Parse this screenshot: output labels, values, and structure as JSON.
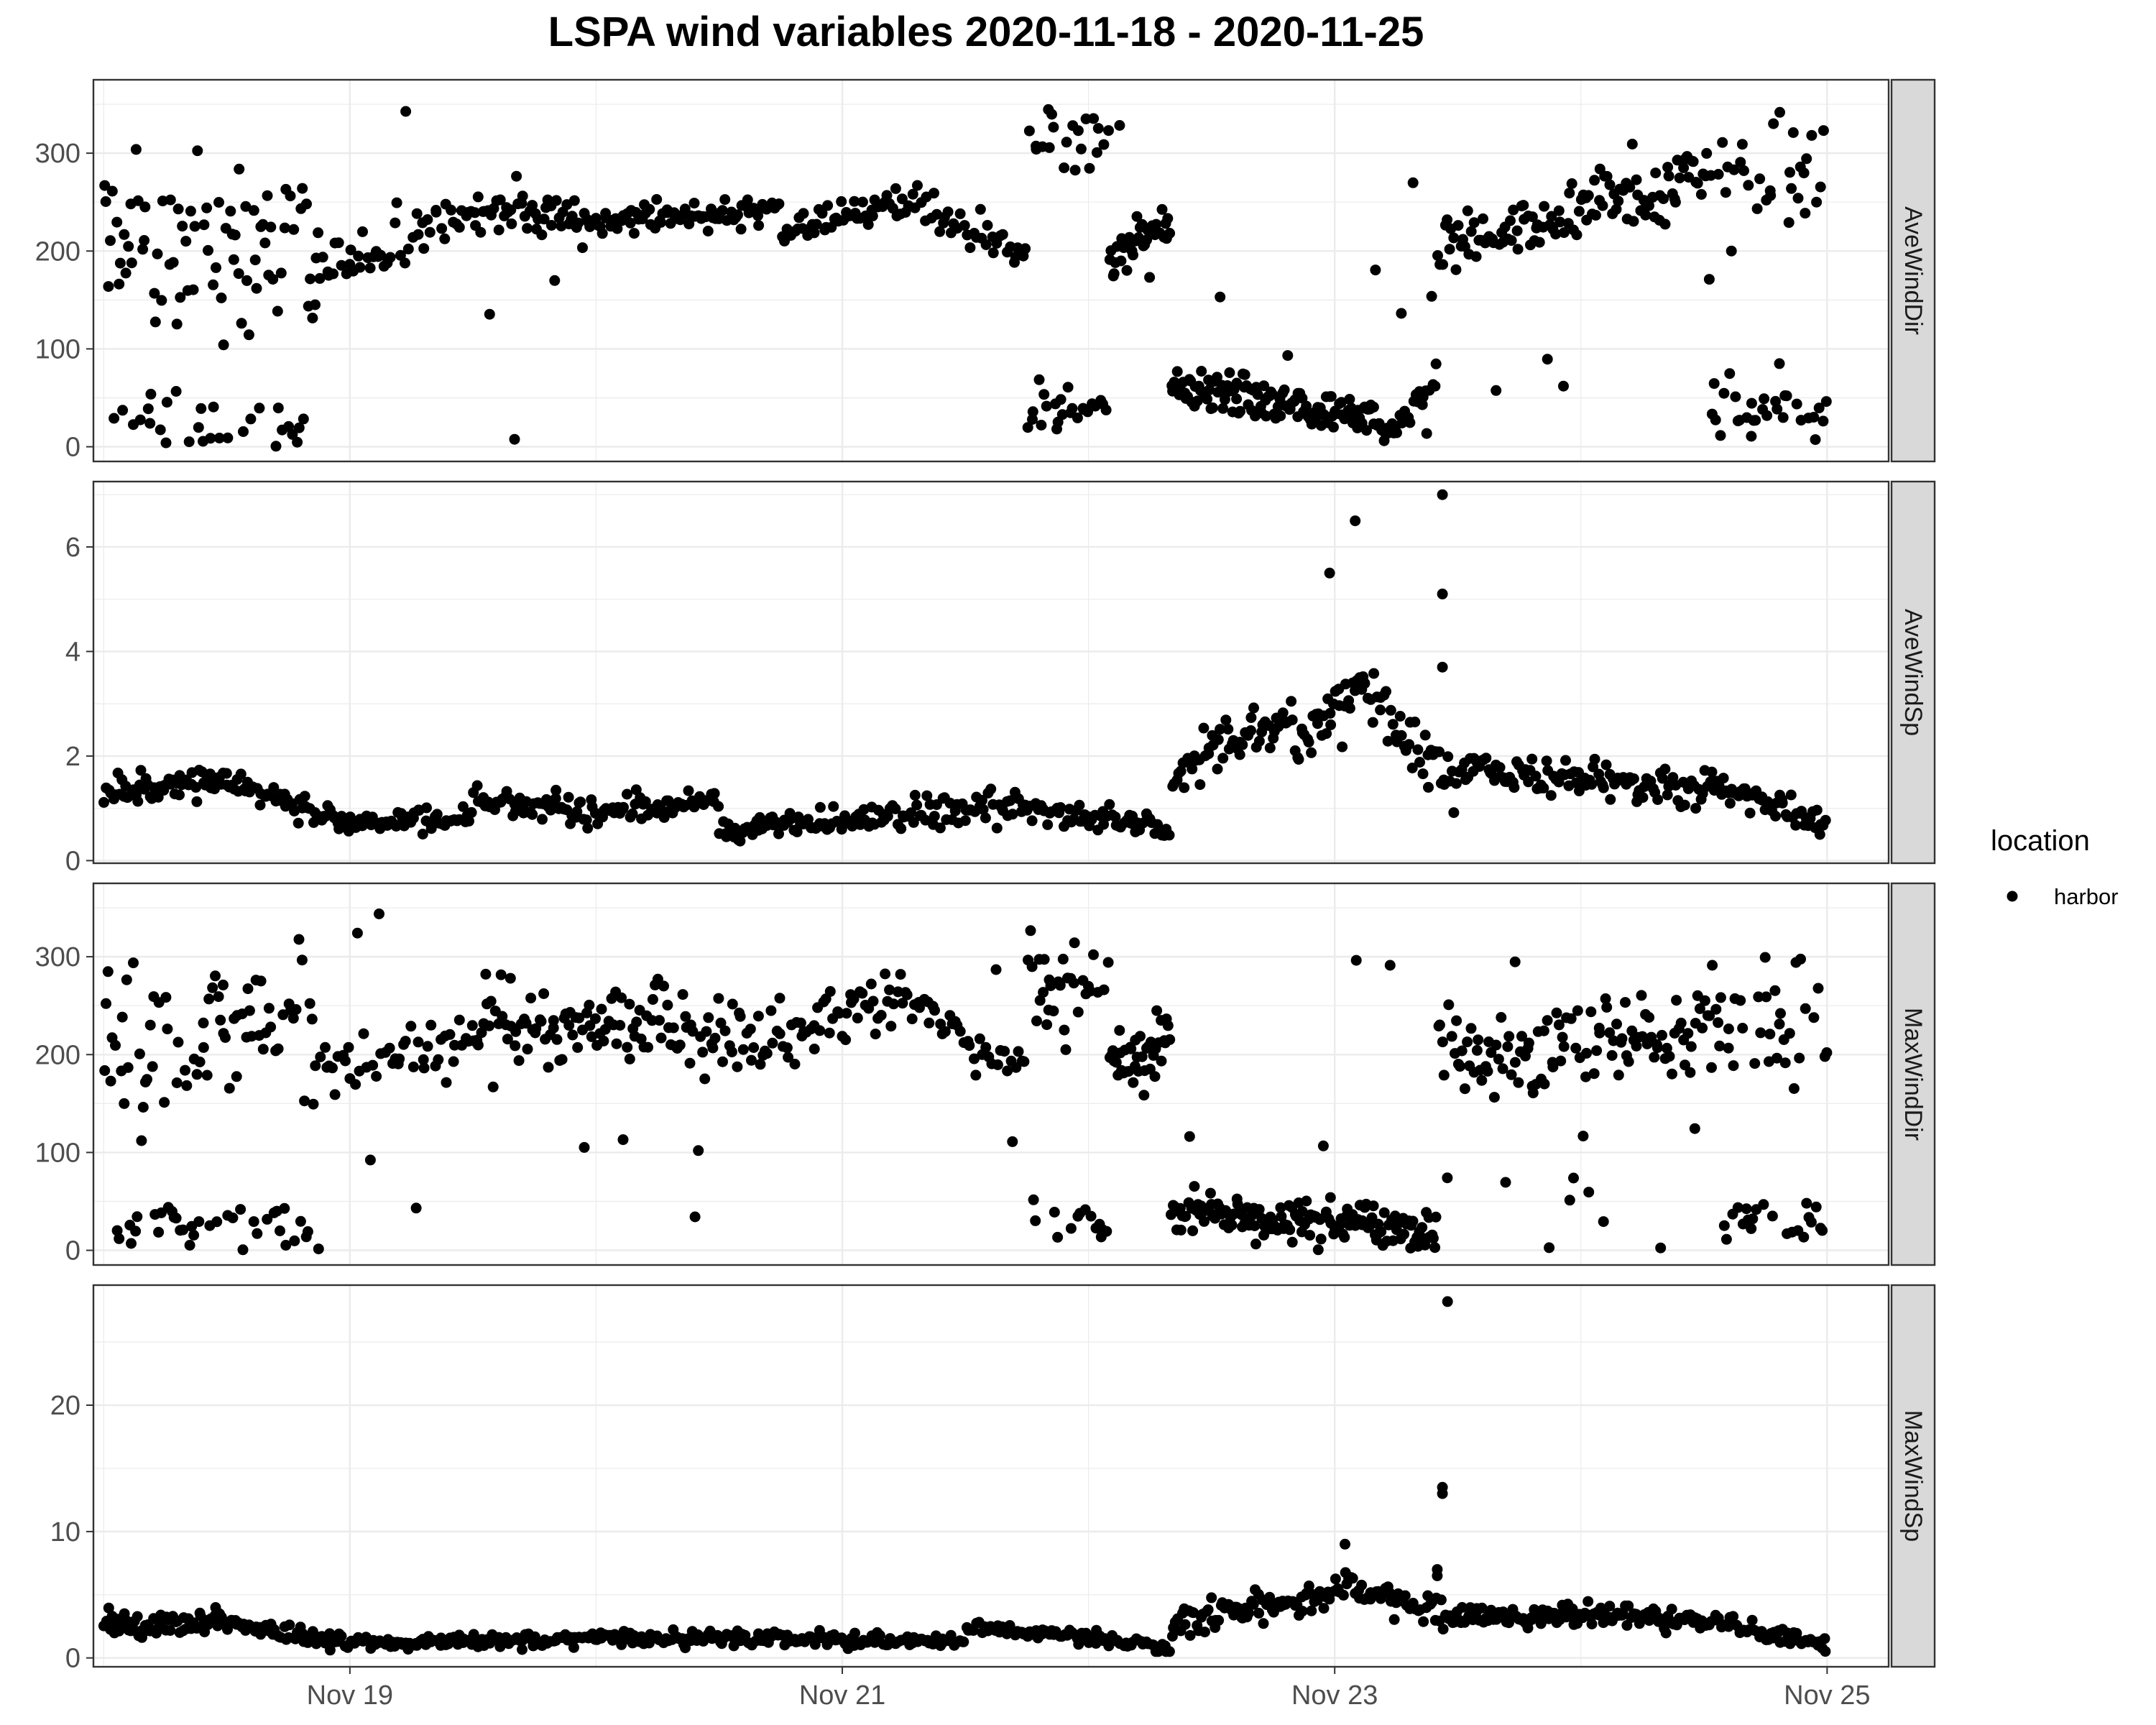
{
  "chart_data": {
    "type": "scatter",
    "title": "LSPA wind variables 2020-11-18 - 2020-11-25",
    "xlabel": "",
    "ylabel": "",
    "x_axis": {
      "range": [
        "2020-11-17T23:00",
        "2020-11-25T06:00"
      ],
      "ticks": [
        {
          "value": "2020-11-19",
          "label": "Nov 19"
        },
        {
          "value": "2020-11-21",
          "label": "Nov 21"
        },
        {
          "value": "2020-11-23",
          "label": "Nov 23"
        },
        {
          "value": "2020-11-25",
          "label": "Nov 25"
        }
      ]
    },
    "grid": true,
    "theme": "bw",
    "point_color": "#000000",
    "strip_fill": "#d9d9d9",
    "legend": {
      "title": "location",
      "placement": "right",
      "entries": [
        {
          "label": "harbor",
          "color": "#000000"
        }
      ]
    },
    "facets": [
      {
        "name": "AveWindDir",
        "ylim": [
          -15,
          375
        ],
        "yticks": [
          0,
          100,
          200,
          300
        ],
        "seed": 11,
        "segments": [
          {
            "from": "2020-11-18T00:00",
            "to": "2020-11-18T21:00",
            "n": 110,
            "mode": "mix",
            "levels": [
              [
                25,
                25,
                0.3
              ],
              [
                220,
                80,
                0.7
              ]
            ]
          },
          {
            "from": "2020-11-18T21:00",
            "to": "2020-11-19T12:00",
            "n": 50,
            "mode": "trend",
            "y0": 175,
            "y1": 235,
            "noise": 20,
            "outlier": 0.08
          },
          {
            "from": "2020-11-19T12:00",
            "to": "2020-11-20T00:00",
            "n": 55,
            "mode": "trend",
            "y0": 240,
            "y1": 232,
            "noise": 18,
            "outlier": 0.12
          },
          {
            "from": "2020-11-20T00:00",
            "to": "2020-11-20T18:00",
            "n": 75,
            "mode": "trend",
            "y0": 232,
            "y1": 242,
            "noise": 12,
            "outlier": 0.01
          },
          {
            "from": "2020-11-20T18:00",
            "to": "2020-11-21T06:00",
            "n": 50,
            "mode": "trend",
            "y0": 220,
            "y1": 250,
            "noise": 12,
            "outlier": 0.02
          },
          {
            "from": "2020-11-21T06:00",
            "to": "2020-11-21T18:00",
            "n": 40,
            "mode": "trend",
            "y0": 250,
            "y1": 200,
            "noise": 20,
            "outlier": 0.05
          },
          {
            "from": "2020-11-21T18:00",
            "to": "2020-11-22T02:00",
            "n": 45,
            "mode": "mix",
            "levels": [
              [
                40,
                20,
                0.5
              ],
              [
                300,
                40,
                0.5
              ]
            ]
          },
          {
            "from": "2020-11-22T02:00",
            "to": "2020-11-22T08:00",
            "n": 40,
            "mode": "trend",
            "y0": 190,
            "y1": 235,
            "noise": 20,
            "outlier": 0.04
          },
          {
            "from": "2020-11-22T08:00",
            "to": "2020-11-23T06:00",
            "n": 140,
            "mode": "trend",
            "y0": 65,
            "y1": 22,
            "noise": 18,
            "outlier": 0.04
          },
          {
            "from": "2020-11-23T06:00",
            "to": "2020-11-23T10:00",
            "n": 22,
            "mode": "trend",
            "y0": 25,
            "y1": 60,
            "noise": 15,
            "outlier": 0.05
          },
          {
            "from": "2020-11-23T10:00",
            "to": "2020-11-24T12:00",
            "n": 120,
            "mode": "trend",
            "y0": 200,
            "y1": 280,
            "noise": 25,
            "outlier": 0.05
          },
          {
            "from": "2020-11-24T12:00",
            "to": "2020-11-25T00:00",
            "n": 65,
            "mode": "mix",
            "levels": [
              [
                40,
                30,
                0.4
              ],
              [
                260,
                60,
                0.6
              ]
            ]
          }
        ]
      },
      {
        "name": "AveWindSp",
        "ylim": [
          -0.05,
          7.25
        ],
        "yticks": [
          0,
          2,
          4,
          6
        ],
        "seed": 23,
        "segments": [
          {
            "from": "2020-11-18T00:00",
            "to": "2020-11-18T12:00",
            "n": 60,
            "mode": "trend",
            "y0": 1.3,
            "y1": 1.6,
            "noise": 0.28,
            "outlier": 0
          },
          {
            "from": "2020-11-18T12:00",
            "to": "2020-11-19T00:00",
            "n": 55,
            "mode": "trend",
            "y0": 1.5,
            "y1": 0.7,
            "noise": 0.2,
            "outlier": 0
          },
          {
            "from": "2020-11-19T00:00",
            "to": "2020-11-19T12:00",
            "n": 50,
            "mode": "trend",
            "y0": 0.7,
            "y1": 0.8,
            "noise": 0.18,
            "outlier": 0
          },
          {
            "from": "2020-11-19T12:00",
            "to": "2020-11-20T00:00",
            "n": 55,
            "mode": "trend",
            "y0": 1.2,
            "y1": 0.9,
            "noise": 0.25,
            "outlier": 0
          },
          {
            "from": "2020-11-20T00:00",
            "to": "2020-11-20T12:00",
            "n": 50,
            "mode": "trend",
            "y0": 0.9,
            "y1": 1.2,
            "noise": 0.25,
            "outlier": 0
          },
          {
            "from": "2020-11-20T12:00",
            "to": "2020-11-21T00:00",
            "n": 55,
            "mode": "trend",
            "y0": 0.6,
            "y1": 0.8,
            "noise": 0.2,
            "outlier": 0
          },
          {
            "from": "2020-11-21T00:00",
            "to": "2020-11-21T18:00",
            "n": 75,
            "mode": "trend",
            "y0": 0.8,
            "y1": 1.1,
            "noise": 0.25,
            "outlier": 0
          },
          {
            "from": "2020-11-21T18:00",
            "to": "2020-11-22T08:00",
            "n": 60,
            "mode": "trend",
            "y0": 1.0,
            "y1": 0.6,
            "noise": 0.2,
            "outlier": 0
          },
          {
            "from": "2020-11-22T08:00",
            "to": "2020-11-22T20:00",
            "n": 55,
            "mode": "trend",
            "y0": 1.7,
            "y1": 2.8,
            "noise": 0.4,
            "outlier": 0
          },
          {
            "from": "2020-11-22T20:00",
            "to": "2020-11-23T02:00",
            "n": 30,
            "mode": "trend",
            "y0": 2.2,
            "y1": 3.2,
            "noise": 0.55,
            "outlier": 0
          },
          {
            "from": "2020-11-23T02:00",
            "to": "2020-11-23T12:00",
            "n": 45,
            "mode": "trend",
            "y0": 3.5,
            "y1": 1.3,
            "noise": 0.45,
            "outlier": 0
          },
          {
            "from": "2020-11-23T12:00",
            "to": "2020-11-24T12:00",
            "n": 110,
            "mode": "trend",
            "y0": 1.8,
            "y1": 1.3,
            "noise": 0.3,
            "outlier": 0
          },
          {
            "from": "2020-11-24T12:00",
            "to": "2020-11-25T00:00",
            "n": 55,
            "mode": "trend",
            "y0": 1.5,
            "y1": 0.7,
            "noise": 0.25,
            "outlier": 0
          }
        ],
        "extra_points": [
          {
            "x": "2020-11-22T23:30",
            "y": 5.5
          },
          {
            "x": "2020-11-23T02:00",
            "y": 6.5
          },
          {
            "x": "2020-11-23T10:30",
            "y": 7.0
          },
          {
            "x": "2020-11-23T10:30",
            "y": 5.1
          },
          {
            "x": "2020-11-23T10:30",
            "y": 3.7
          }
        ]
      },
      {
        "name": "MaxWindDir",
        "ylim": [
          -15,
          375
        ],
        "yticks": [
          0,
          100,
          200,
          300
        ],
        "seed": 37,
        "segments": [
          {
            "from": "2020-11-18T00:00",
            "to": "2020-11-18T21:00",
            "n": 110,
            "mode": "mix",
            "levels": [
              [
                25,
                25,
                0.35
              ],
              [
                215,
                70,
                0.65
              ]
            ]
          },
          {
            "from": "2020-11-18T21:00",
            "to": "2020-11-19T12:00",
            "n": 50,
            "mode": "trend",
            "y0": 185,
            "y1": 220,
            "noise": 25,
            "outlier": 0.08
          },
          {
            "from": "2020-11-19T12:00",
            "to": "2020-11-20T12:00",
            "n": 110,
            "mode": "trend",
            "y0": 230,
            "y1": 230,
            "noise": 40,
            "outlier": 0.06
          },
          {
            "from": "2020-11-20T12:00",
            "to": "2020-11-21T06:00",
            "n": 70,
            "mode": "trend",
            "y0": 215,
            "y1": 255,
            "noise": 28,
            "outlier": 0.02
          },
          {
            "from": "2020-11-21T06:00",
            "to": "2020-11-21T18:00",
            "n": 40,
            "mode": "trend",
            "y0": 255,
            "y1": 190,
            "noise": 28,
            "outlier": 0.05
          },
          {
            "from": "2020-11-21T18:00",
            "to": "2020-11-22T02:00",
            "n": 45,
            "mode": "mix",
            "levels": [
              [
                30,
                20,
                0.5
              ],
              [
                270,
                45,
                0.5
              ]
            ]
          },
          {
            "from": "2020-11-22T02:00",
            "to": "2020-11-22T08:00",
            "n": 40,
            "mode": "trend",
            "y0": 190,
            "y1": 210,
            "noise": 28,
            "outlier": 0.05
          },
          {
            "from": "2020-11-22T08:00",
            "to": "2020-11-23T10:00",
            "n": 160,
            "mode": "trend",
            "y0": 40,
            "y1": 20,
            "noise": 18,
            "outlier": 0.04
          },
          {
            "from": "2020-11-23T10:00",
            "to": "2020-11-24T12:00",
            "n": 120,
            "mode": "trend",
            "y0": 195,
            "y1": 220,
            "noise": 40,
            "outlier": 0.15
          },
          {
            "from": "2020-11-24T12:00",
            "to": "2020-11-25T00:00",
            "n": 60,
            "mode": "mix",
            "levels": [
              [
                30,
                20,
                0.4
              ],
              [
                230,
                60,
                0.6
              ]
            ]
          }
        ]
      },
      {
        "name": "MaxWindSp",
        "ylim": [
          -0.7,
          29.5
        ],
        "yticks": [
          0,
          10,
          20
        ],
        "seed": 53,
        "segments": [
          {
            "from": "2020-11-18T00:00",
            "to": "2020-11-18T12:00",
            "n": 65,
            "mode": "trend",
            "y0": 2.6,
            "y1": 2.9,
            "noise": 0.9,
            "outlier": 0
          },
          {
            "from": "2020-11-18T12:00",
            "to": "2020-11-19T00:00",
            "n": 55,
            "mode": "trend",
            "y0": 2.7,
            "y1": 1.2,
            "noise": 0.55,
            "outlier": 0
          },
          {
            "from": "2020-11-19T00:00",
            "to": "2020-11-20T12:00",
            "n": 150,
            "mode": "trend",
            "y0": 1.2,
            "y1": 1.6,
            "noise": 0.5,
            "outlier": 0
          },
          {
            "from": "2020-11-20T12:00",
            "to": "2020-11-21T12:00",
            "n": 100,
            "mode": "trend",
            "y0": 1.6,
            "y1": 1.3,
            "noise": 0.5,
            "outlier": 0
          },
          {
            "from": "2020-11-21T12:00",
            "to": "2020-11-22T08:00",
            "n": 80,
            "mode": "trend",
            "y0": 2.6,
            "y1": 0.8,
            "noise": 0.6,
            "outlier": 0
          },
          {
            "from": "2020-11-22T08:00",
            "to": "2020-11-23T00:00",
            "n": 80,
            "mode": "trend",
            "y0": 2.8,
            "y1": 5.0,
            "noise": 1.0,
            "outlier": 0
          },
          {
            "from": "2020-11-23T00:00",
            "to": "2020-11-23T12:00",
            "n": 55,
            "mode": "trend",
            "y0": 6.0,
            "y1": 3.0,
            "noise": 1.0,
            "outlier": 0
          },
          {
            "from": "2020-11-23T12:00",
            "to": "2020-11-24T12:00",
            "n": 120,
            "mode": "trend",
            "y0": 3.3,
            "y1": 3.0,
            "noise": 0.75,
            "outlier": 0
          },
          {
            "from": "2020-11-24T12:00",
            "to": "2020-11-25T00:00",
            "n": 55,
            "mode": "trend",
            "y0": 3.0,
            "y1": 1.0,
            "noise": 0.55,
            "outlier": 0
          }
        ],
        "extra_points": [
          {
            "x": "2020-11-23T11:00",
            "y": 28.2
          },
          {
            "x": "2020-11-23T10:30",
            "y": 13.5
          },
          {
            "x": "2020-11-23T10:30",
            "y": 13.0
          },
          {
            "x": "2020-11-23T10:00",
            "y": 7.0
          },
          {
            "x": "2020-11-23T10:00",
            "y": 6.5
          },
          {
            "x": "2020-11-23T01:00",
            "y": 9.0
          }
        ]
      }
    ]
  }
}
